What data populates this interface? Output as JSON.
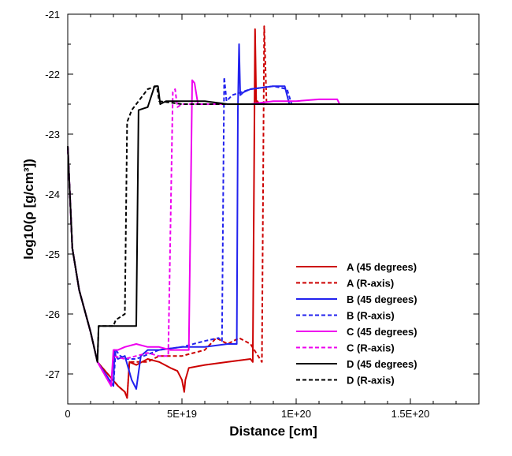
{
  "chart_data": {
    "type": "line",
    "title": "",
    "xlabel": "Distance [cm]",
    "ylabel": "log10(ρ [g/cm³])",
    "xlim": [
      0,
      1.8e+20
    ],
    "ylim": [
      -27.5,
      -21
    ],
    "grid": false,
    "legend_position": "bottom-right",
    "x_ticks": [
      {
        "value": 0,
        "label": "0"
      },
      {
        "value": 5e+19,
        "label": "5E+19"
      },
      {
        "value": 1e+20,
        "label": "1E+20"
      },
      {
        "value": 1.5e+20,
        "label": "1.5E+20"
      }
    ],
    "y_ticks": [
      {
        "value": -21,
        "label": "-21"
      },
      {
        "value": -22,
        "label": "-22"
      },
      {
        "value": -23,
        "label": "-23"
      },
      {
        "value": -24,
        "label": "-24"
      },
      {
        "value": -25,
        "label": "-25"
      },
      {
        "value": -26,
        "label": "-26"
      },
      {
        "value": -27,
        "label": "-27"
      }
    ],
    "series": [
      {
        "name": "A (45 degrees)",
        "color": "#cc0000",
        "dash": "solid",
        "x": [
          0,
          2e+18,
          5e+18,
          1e+19,
          1.3e+19,
          2.2e+19,
          2.5e+19,
          2.6e+19,
          2.7e+19,
          3e+19,
          3.5e+19,
          4e+19,
          4.5e+19,
          4.8e+19,
          5e+19,
          5.1e+19,
          5.15e+19,
          5.3e+19,
          6e+19,
          7e+19,
          8e+19,
          8.1e+19,
          8.2e+19,
          8.25e+19,
          8.3e+19,
          8.4e+19,
          1e+20,
          1.2e+20,
          1.5e+20,
          1.8e+20
        ],
        "y": [
          -23.2,
          -24.9,
          -25.6,
          -26.3,
          -26.8,
          -27.2,
          -27.3,
          -27.4,
          -26.8,
          -26.85,
          -26.75,
          -26.8,
          -26.9,
          -26.95,
          -27.1,
          -27.3,
          -27.1,
          -26.9,
          -26.85,
          -26.8,
          -26.75,
          -26.8,
          -21.25,
          -22.5,
          -22.45,
          -22.5,
          -22.5,
          -22.5,
          -22.5,
          -22.5
        ]
      },
      {
        "name": "A (R-axis)",
        "color": "#cc0000",
        "dash": "dashed",
        "x": [
          0,
          2e+18,
          5e+18,
          1e+19,
          1.3e+19,
          2.2e+19,
          2.5e+19,
          2.6e+19,
          2.7e+19,
          3.5e+19,
          4e+19,
          5e+19,
          6e+19,
          6.5e+19,
          7e+19,
          7.5e+19,
          8e+19,
          8.5e+19,
          8.6e+19,
          8.7e+19,
          8.8e+19,
          9e+19,
          1e+20,
          1.2e+20,
          1.5e+20,
          1.8e+20
        ],
        "y": [
          -23.2,
          -24.9,
          -25.6,
          -26.3,
          -26.8,
          -27.2,
          -27.3,
          -27.4,
          -26.8,
          -26.8,
          -26.7,
          -26.7,
          -26.6,
          -26.4,
          -26.5,
          -26.4,
          -26.5,
          -26.8,
          -21.2,
          -22.45,
          -22.5,
          -22.5,
          -22.5,
          -22.5,
          -22.5,
          -22.5
        ]
      },
      {
        "name": "B (45 degrees)",
        "color": "#2222ee",
        "dash": "solid",
        "x": [
          0,
          2e+18,
          5e+18,
          1e+19,
          1.3e+19,
          2e+19,
          2.05e+19,
          2.1e+19,
          2.2e+19,
          2.5e+19,
          2.8e+19,
          3e+19,
          3.2e+19,
          3.5e+19,
          4e+19,
          5e+19,
          6e+19,
          7e+19,
          7.4e+19,
          7.45e+19,
          7.5e+19,
          7.55e+19,
          7.7e+19,
          8e+19,
          9e+19,
          9.5e+19,
          9.7e+19,
          1e+20,
          1.2e+20,
          1.5e+20,
          1.8e+20
        ],
        "y": [
          -23.2,
          -24.9,
          -25.6,
          -26.3,
          -26.8,
          -27.2,
          -26.6,
          -26.7,
          -26.75,
          -26.7,
          -27.1,
          -27.25,
          -26.7,
          -26.6,
          -26.6,
          -26.55,
          -26.55,
          -26.5,
          -26.5,
          -22.6,
          -21.5,
          -22.35,
          -22.3,
          -22.25,
          -22.2,
          -22.2,
          -22.5,
          -22.5,
          -22.5,
          -22.5,
          -22.5
        ]
      },
      {
        "name": "B (R-axis)",
        "color": "#2222ee",
        "dash": "dashed",
        "x": [
          0,
          2e+18,
          5e+18,
          1e+19,
          1.3e+19,
          2e+19,
          2.1e+19,
          2.3e+19,
          2.6e+19,
          3e+19,
          4e+19,
          5e+19,
          6e+19,
          6.6e+19,
          6.75e+19,
          6.85e+19,
          6.95e+19,
          7.2e+19,
          8e+19,
          9e+19,
          9.6e+19,
          9.8e+19,
          1e+20,
          1.2e+20,
          1.5e+20,
          1.8e+20
        ],
        "y": [
          -23.2,
          -24.9,
          -25.6,
          -26.3,
          -26.8,
          -27.2,
          -26.6,
          -26.7,
          -26.75,
          -26.75,
          -26.6,
          -26.55,
          -26.45,
          -26.4,
          -26.45,
          -22.05,
          -22.45,
          -22.35,
          -22.25,
          -22.2,
          -22.25,
          -22.5,
          -22.5,
          -22.5,
          -22.5,
          -22.5
        ]
      },
      {
        "name": "C (45 degrees)",
        "color": "#ee00ee",
        "dash": "solid",
        "x": [
          0,
          2e+18,
          5e+18,
          1e+19,
          1.3e+19,
          1.9e+19,
          2e+19,
          2.2e+19,
          2.5e+19,
          3e+19,
          3.5e+19,
          4e+19,
          4.5e+19,
          5e+19,
          5.3e+19,
          5.45e+19,
          5.55e+19,
          5.7e+19,
          6e+19,
          7e+19,
          8e+19,
          9e+19,
          1e+20,
          1.1e+20,
          1.18e+20,
          1.19e+20,
          1.5e+20,
          1.8e+20
        ],
        "y": [
          -23.2,
          -24.9,
          -25.6,
          -26.3,
          -26.8,
          -27.2,
          -26.6,
          -26.6,
          -26.55,
          -26.5,
          -26.55,
          -26.55,
          -26.6,
          -26.6,
          -26.6,
          -22.1,
          -22.15,
          -22.5,
          -22.5,
          -22.5,
          -22.5,
          -22.45,
          -22.45,
          -22.42,
          -22.42,
          -22.5,
          -22.5,
          -22.5
        ]
      },
      {
        "name": "C (R-axis)",
        "color": "#ee00ee",
        "dash": "dashed",
        "x": [
          0,
          2e+18,
          5e+18,
          1e+19,
          1.3e+19,
          1.9e+19,
          2e+19,
          2.5e+19,
          3e+19,
          3.5e+19,
          4e+19,
          4.4e+19,
          4.6e+19,
          4.7e+19,
          4.8e+19,
          5e+19,
          6e+19,
          8e+19,
          1e+20,
          1.5e+20,
          1.8e+20
        ],
        "y": [
          -23.2,
          -24.9,
          -25.6,
          -26.3,
          -26.8,
          -27.2,
          -26.7,
          -26.75,
          -26.7,
          -26.65,
          -26.7,
          -26.7,
          -22.3,
          -22.25,
          -22.55,
          -22.5,
          -22.5,
          -22.5,
          -22.5,
          -22.5,
          -22.5
        ]
      },
      {
        "name": "D (45 degrees)",
        "color": "#000000",
        "dash": "solid",
        "x": [
          0,
          2e+18,
          5e+18,
          1e+19,
          1.3e+19,
          1.35e+19,
          1.6e+19,
          2e+19,
          2.15e+19,
          3e+19,
          3.1e+19,
          3.5e+19,
          3.8e+19,
          3.95e+19,
          4.05e+19,
          4.3e+19,
          5e+19,
          6e+19,
          7e+19,
          1e+20,
          1.5e+20,
          1.8e+20
        ],
        "y": [
          -23.2,
          -24.9,
          -25.6,
          -26.3,
          -26.8,
          -26.2,
          -26.2,
          -26.2,
          -26.2,
          -26.2,
          -22.6,
          -22.55,
          -22.2,
          -22.2,
          -22.5,
          -22.45,
          -22.45,
          -22.45,
          -22.5,
          -22.5,
          -22.5,
          -22.5
        ]
      },
      {
        "name": "D (R-axis)",
        "color": "#000000",
        "dash": "dashed",
        "x": [
          0,
          2e+18,
          5e+18,
          1e+19,
          1.3e+19,
          1.35e+19,
          2e+19,
          2.1e+19,
          2.3e+19,
          2.5e+19,
          2.6e+19,
          2.8e+19,
          3.2e+19,
          3.5e+19,
          3.9e+19,
          4e+19,
          5e+19,
          6e+19,
          1e+20,
          1.5e+20,
          1.8e+20
        ],
        "y": [
          -23.2,
          -24.9,
          -25.6,
          -26.3,
          -26.8,
          -26.2,
          -26.2,
          -26.1,
          -26.05,
          -26.0,
          -22.8,
          -22.6,
          -22.4,
          -22.25,
          -22.2,
          -22.45,
          -22.5,
          -22.5,
          -22.5,
          -22.5,
          -22.5
        ]
      }
    ]
  }
}
